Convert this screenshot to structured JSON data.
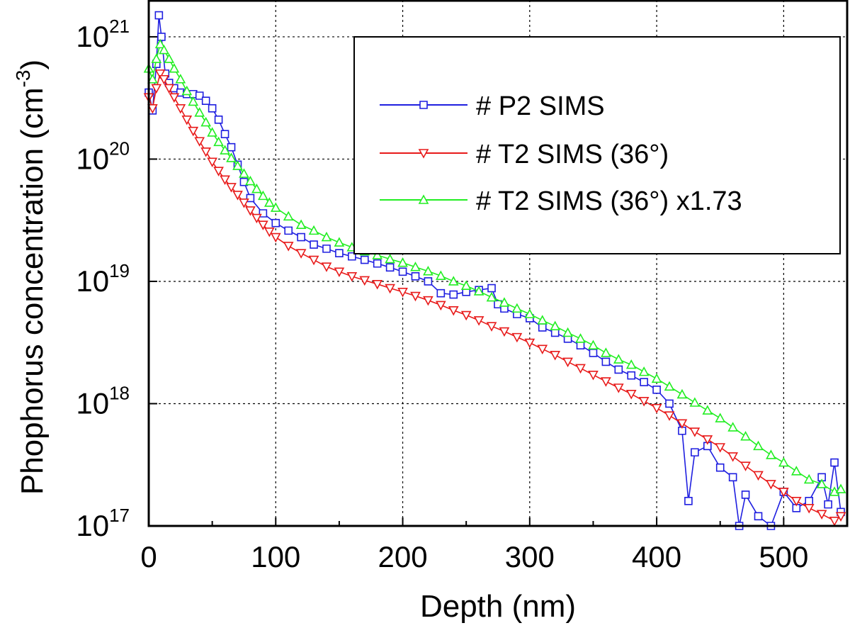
{
  "chart_data": {
    "type": "scatter",
    "title": "",
    "xlabel": "Depth (nm)",
    "ylabel_main": "Phophorus concentration (cm",
    "ylabel_exp": "-3",
    "ylabel_close": ")",
    "xlim": [
      0,
      550
    ],
    "ylim": [
      1e+17,
      2e+21
    ],
    "yscale": "log",
    "grid": true,
    "legend_position": "top-right",
    "x_ticks": [
      {
        "value": 0,
        "label": "0"
      },
      {
        "value": 100,
        "label": "100"
      },
      {
        "value": 200,
        "label": "200"
      },
      {
        "value": 300,
        "label": "300"
      },
      {
        "value": 400,
        "label": "400"
      },
      {
        "value": 500,
        "label": "500"
      }
    ],
    "y_ticks": [
      {
        "value": 1e+17,
        "base": "10",
        "exp": "17"
      },
      {
        "value": 1e+18,
        "base": "10",
        "exp": "18"
      },
      {
        "value": 1e+19,
        "base": "10",
        "exp": "19"
      },
      {
        "value": 1e+20,
        "base": "10",
        "exp": "20"
      },
      {
        "value": 1e+21,
        "base": "10",
        "exp": "21"
      }
    ],
    "series": [
      {
        "name": "# P2 SIMS",
        "color": "#1f1fe0",
        "marker": "square",
        "x": [
          0,
          3,
          6,
          8,
          10,
          13,
          16,
          20,
          25,
          30,
          35,
          40,
          45,
          50,
          55,
          60,
          65,
          70,
          75,
          80,
          90,
          100,
          110,
          120,
          130,
          140,
          150,
          160,
          170,
          180,
          190,
          200,
          210,
          220,
          230,
          240,
          250,
          260,
          270,
          275,
          280,
          290,
          300,
          310,
          320,
          330,
          340,
          350,
          360,
          370,
          380,
          390,
          400,
          410,
          420,
          425,
          430,
          440,
          450,
          460,
          465,
          470,
          480,
          490,
          500,
          510,
          520,
          530,
          535,
          540,
          545
        ],
        "y": [
          3.5e+20,
          2.5e+20,
          6e+20,
          1.5e+21,
          1e+21,
          5e+20,
          4.2e+20,
          3.8e+20,
          3.5e+20,
          3.4e+20,
          3.4e+20,
          3.3e+20,
          3e+20,
          2.6e+20,
          2.1e+20,
          1.6e+20,
          1.25e+20,
          9e+19,
          6.5e+19,
          4.8e+19,
          3.6e+19,
          3e+19,
          2.6e+19,
          2.3e+19,
          2e+19,
          1.85e+19,
          1.7e+19,
          1.6e+19,
          1.5e+19,
          1.4e+19,
          1.3e+19,
          1.2e+19,
          1.1e+19,
          1e+19,
          8e+18,
          7.8e+18,
          8.2e+18,
          8.5e+18,
          8.8e+18,
          6.5e+18,
          6e+18,
          5.4e+18,
          5e+18,
          4.2e+18,
          3.8e+18,
          3.4e+18,
          3e+18,
          2.6e+18,
          2.2e+18,
          1.9e+18,
          1.7e+18,
          1.5e+18,
          1.3e+18,
          1e+18,
          6e+17,
          1.6e+17,
          4e+17,
          4.5e+17,
          3e+17,
          2.5e+17,
          1e+17,
          1.8e+17,
          1.2e+17,
          1e+17,
          1.9e+17,
          1.4e+17,
          1.6e+17,
          2.5e+17,
          1.5e+17,
          3.3e+17,
          1.3e+17
        ]
      },
      {
        "name": "# T2 SIMS (36°)",
        "color": "#e81a1a",
        "marker": "triangle-down",
        "x": [
          0,
          3,
          6,
          9,
          12,
          16,
          20,
          25,
          30,
          35,
          40,
          45,
          50,
          55,
          60,
          65,
          70,
          75,
          80,
          85,
          90,
          95,
          100,
          110,
          120,
          130,
          140,
          150,
          160,
          170,
          180,
          190,
          200,
          210,
          220,
          230,
          240,
          250,
          260,
          270,
          280,
          290,
          300,
          310,
          320,
          330,
          340,
          350,
          360,
          370,
          380,
          390,
          400,
          410,
          420,
          430,
          440,
          450,
          460,
          470,
          480,
          490,
          500,
          510,
          520,
          530,
          540,
          545
        ],
        "y": [
          3.2e+20,
          2.6e+20,
          3.8e+20,
          5e+20,
          4.5e+20,
          3.8e+20,
          3.2e+20,
          2.6e+20,
          2.1e+20,
          1.7e+20,
          1.4e+20,
          1.15e+20,
          9.5e+19,
          8e+19,
          6.8e+19,
          5.9e+19,
          5.1e+19,
          4.4e+19,
          3.8e+19,
          3.3e+19,
          2.9e+19,
          2.55e+19,
          2.3e+19,
          1.95e+19,
          1.7e+19,
          1.5e+19,
          1.32e+19,
          1.2e+19,
          1.1e+19,
          1.02e+19,
          9.5e+18,
          8.8e+18,
          8.2e+18,
          7.6e+18,
          7e+18,
          6.4e+18,
          5.8e+18,
          5.3e+18,
          4.8e+18,
          4.3e+18,
          3.9e+18,
          3.5e+18,
          3.15e+18,
          2.8e+18,
          2.5e+18,
          2.2e+18,
          1.95e+18,
          1.72e+18,
          1.52e+18,
          1.35e+18,
          1.2e+18,
          1.05e+18,
          9.2e+17,
          8e+17,
          6.9e+17,
          5.9e+17,
          5.1e+17,
          4.4e+17,
          3.7e+17,
          3.1e+17,
          2.6e+17,
          2.2e+17,
          1.9e+17,
          1.6e+17,
          1.4e+17,
          1.25e+17,
          1.1e+17,
          1.2e+17
        ]
      },
      {
        "name": "# T2 SIMS (36°) x1.73",
        "color": "#22ee22",
        "marker": "triangle-up",
        "x": [
          0,
          3,
          6,
          9,
          12,
          16,
          20,
          25,
          30,
          35,
          40,
          45,
          50,
          55,
          60,
          65,
          70,
          75,
          80,
          85,
          90,
          95,
          100,
          110,
          120,
          130,
          140,
          150,
          160,
          170,
          180,
          190,
          200,
          210,
          220,
          230,
          240,
          250,
          260,
          270,
          280,
          290,
          300,
          310,
          320,
          330,
          340,
          350,
          360,
          370,
          380,
          390,
          400,
          410,
          420,
          430,
          440,
          450,
          460,
          470,
          480,
          490,
          500,
          510,
          520,
          530,
          540,
          545
        ],
        "y": [
          5.5e+20,
          4.5e+20,
          6.6e+20,
          8.7e+20,
          7.8e+20,
          6.6e+20,
          5.5e+20,
          4.5e+20,
          3.6e+20,
          2.95e+20,
          2.4e+20,
          2e+20,
          1.65e+20,
          1.38e+20,
          1.18e+20,
          1.02e+20,
          8.8e+19,
          7.6e+19,
          6.6e+19,
          5.7e+19,
          5e+19,
          4.4e+19,
          4e+19,
          3.4e+19,
          2.9e+19,
          2.6e+19,
          2.3e+19,
          2.08e+19,
          1.9e+19,
          1.76e+19,
          1.64e+19,
          1.52e+19,
          1.42e+19,
          1.31e+19,
          1.21e+19,
          1.11e+19,
          1e+19,
          9.2e+18,
          8.3e+18,
          7.4e+18,
          6.7e+18,
          6e+18,
          5.4e+18,
          4.8e+18,
          4.3e+18,
          3.8e+18,
          3.4e+18,
          3e+18,
          2.6e+18,
          2.3e+18,
          2.08e+18,
          1.82e+18,
          1.6e+18,
          1.38e+18,
          1.19e+18,
          1.02e+18,
          8.8e+17,
          7.6e+17,
          6.4e+17,
          5.4e+17,
          4.5e+17,
          3.8e+17,
          3.3e+17,
          2.8e+17,
          2.4e+17,
          2.2e+17,
          1.9e+17,
          2e+17
        ]
      }
    ]
  }
}
